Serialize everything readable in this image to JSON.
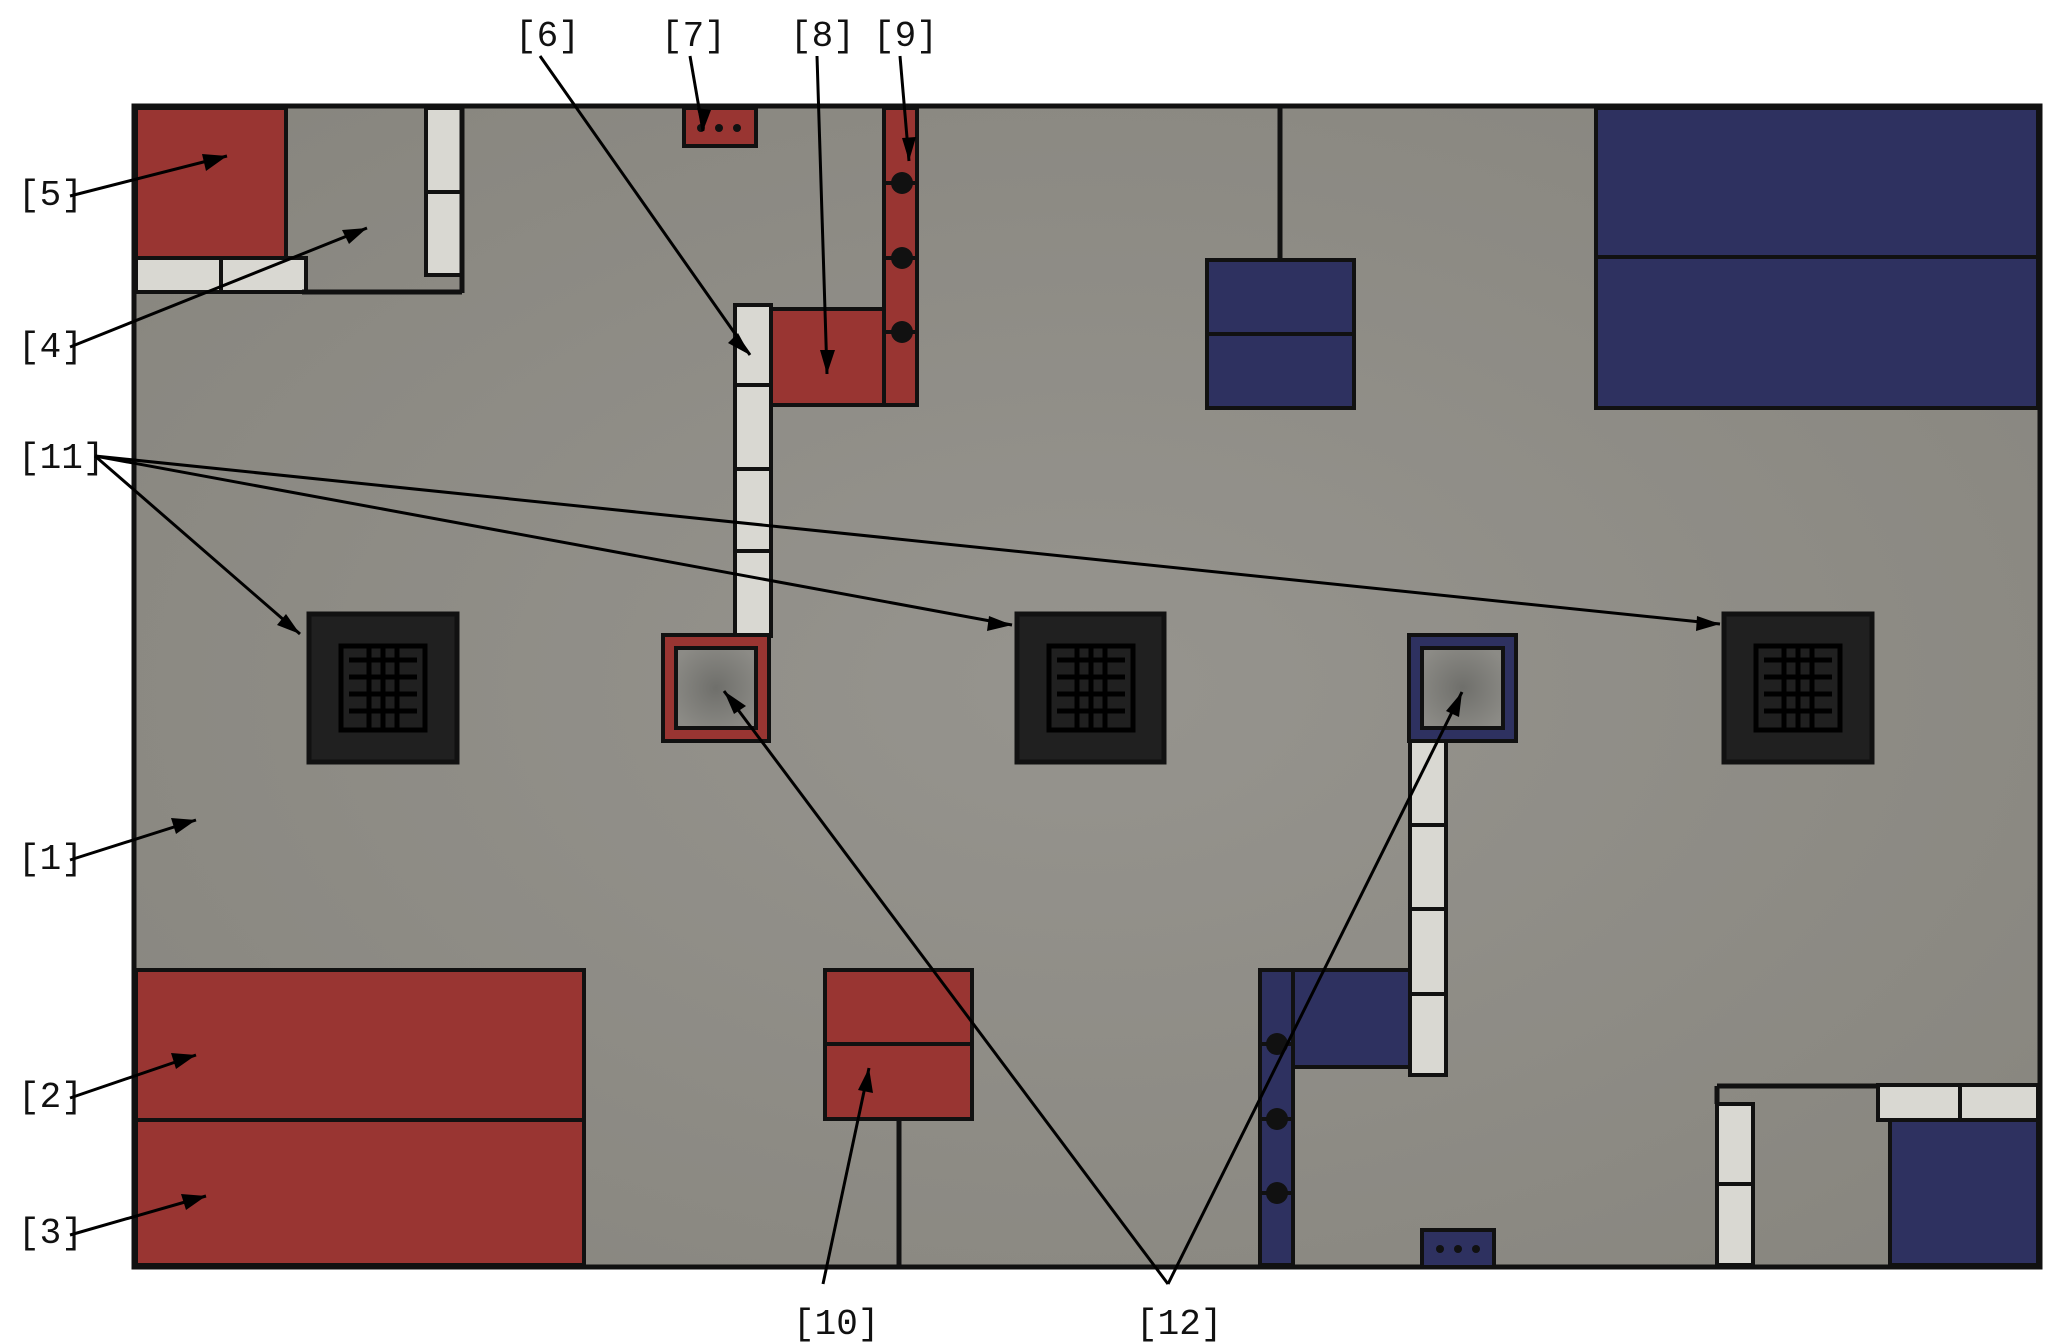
{
  "figure": {
    "colors": {
      "field": "#8d8b86",
      "red_team": "#993532",
      "blue_team": "#2e3160",
      "barrier": "#d9d8d2",
      "outline": "#111111",
      "tower": "#202020",
      "white": "#ffffff"
    },
    "labels": {
      "l1": "[1]",
      "l2": "[2]",
      "l3": "[3]",
      "l4": "[4]",
      "l5": "[5]",
      "l6": "[6]",
      "l7": "[7]",
      "l8": "[8]",
      "l9": "[9]",
      "l10": "[10]",
      "l11": "[11]",
      "l12": "[12]"
    }
  }
}
